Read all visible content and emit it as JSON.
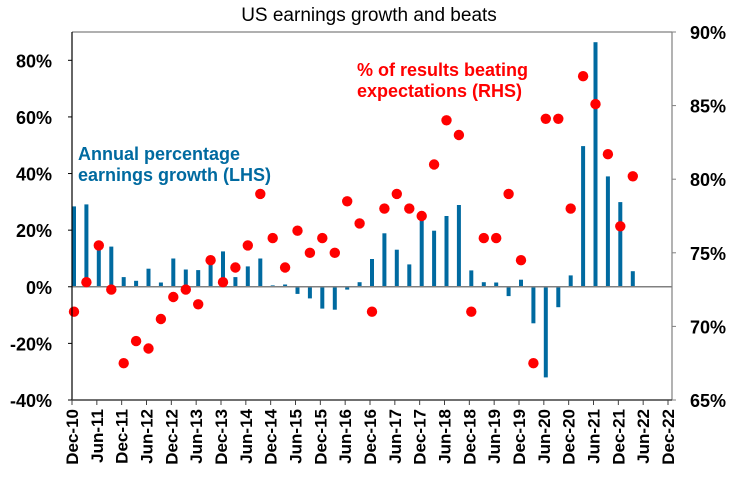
{
  "chart_data": {
    "type": "bar+scatter",
    "title": "US earnings growth and beats",
    "xlabel": "",
    "ylabel_left": "",
    "ylabel_right": "",
    "y_left": {
      "lim": [
        -40,
        90
      ],
      "ticks": [
        -40,
        -20,
        0,
        20,
        40,
        60,
        80
      ],
      "tick_labels": [
        "-40%",
        "-20%",
        "0%",
        "20%",
        "40%",
        "60%",
        "80%"
      ]
    },
    "y_right": {
      "lim": [
        65,
        90
      ],
      "ticks": [
        65,
        70,
        75,
        80,
        85,
        90
      ],
      "tick_labels": [
        "65%",
        "70%",
        "75%",
        "80%",
        "85%",
        "90%"
      ]
    },
    "x_tick_labels": [
      "Dec-10",
      "Jun-11",
      "Dec-11",
      "Jun-12",
      "Dec-12",
      "Jun-13",
      "Dec-13",
      "Jun-14",
      "Dec-14",
      "Jun-15",
      "Dec-15",
      "Jun-16",
      "Dec-16",
      "Jun-17",
      "Dec-17",
      "Jun-18",
      "Dec-18",
      "Jun-19",
      "Dec-19",
      "Jun-20",
      "Dec-20",
      "Jun-21",
      "Dec-21",
      "Jun-22",
      "Dec-22"
    ],
    "grid": false,
    "categories": [
      "Dec-10",
      "Mar-11",
      "Jun-11",
      "Sep-11",
      "Dec-11",
      "Mar-12",
      "Jun-12",
      "Sep-12",
      "Dec-12",
      "Mar-13",
      "Jun-13",
      "Sep-13",
      "Dec-13",
      "Mar-14",
      "Jun-14",
      "Sep-14",
      "Dec-14",
      "Mar-15",
      "Jun-15",
      "Sep-15",
      "Dec-15",
      "Mar-16",
      "Jun-16",
      "Sep-16",
      "Dec-16",
      "Mar-17",
      "Jun-17",
      "Sep-17",
      "Dec-17",
      "Mar-18",
      "Jun-18",
      "Sep-18",
      "Dec-18",
      "Mar-19",
      "Jun-19",
      "Sep-19",
      "Dec-19",
      "Mar-20",
      "Jun-20",
      "Sep-20",
      "Dec-20",
      "Mar-21",
      "Jun-21",
      "Sep-21",
      "Dec-21",
      "Mar-22"
    ],
    "series": [
      {
        "name": "Annual percentage earnings growth (LHS)",
        "type": "bar",
        "axis": "left",
        "color": "#006aa0",
        "values": [
          28.4,
          29.1,
          13.5,
          14.2,
          3.4,
          2.1,
          6.4,
          1.5,
          10.0,
          6.1,
          5.9,
          8.1,
          12.5,
          3.4,
          7.2,
          10.0,
          0.5,
          0.8,
          -2.5,
          -4.1,
          -7.7,
          -8.1,
          -1.0,
          1.6,
          9.8,
          18.9,
          13.1,
          7.9,
          24.6,
          19.8,
          25.0,
          28.9,
          5.8,
          1.6,
          1.5,
          -3.3,
          2.5,
          -12.9,
          -32.0,
          -7.2,
          4.0,
          49.7,
          86.4,
          39.0,
          29.9,
          5.5
        ]
      },
      {
        "name": "% of results beating expectations (RHS)",
        "type": "scatter",
        "axis": "right",
        "color": "#ff0000",
        "values": [
          71.0,
          73.0,
          75.5,
          72.5,
          67.5,
          69.0,
          68.5,
          70.5,
          72.0,
          72.5,
          71.5,
          74.5,
          73.0,
          74.0,
          75.5,
          79.0,
          76.0,
          74.0,
          76.5,
          75.0,
          76.0,
          75.0,
          78.5,
          77.0,
          71.0,
          78.0,
          79.0,
          78.0,
          77.5,
          81.0,
          84.0,
          83.0,
          71.0,
          76.0,
          76.0,
          79.0,
          74.5,
          67.5,
          84.1,
          84.1,
          78.0,
          87.0,
          85.1,
          81.7,
          76.8,
          80.2
        ]
      }
    ],
    "annotations": {
      "lhs": [
        "Annual percentage",
        "earnings growth (LHS)"
      ],
      "rhs": [
        "% of results beating",
        "expectations (RHS)"
      ]
    },
    "legend": "none (inline annotations)"
  }
}
